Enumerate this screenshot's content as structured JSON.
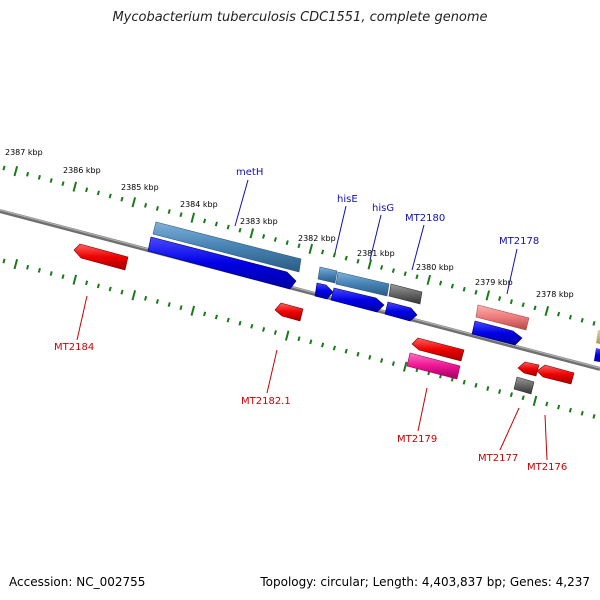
{
  "title": "Mycobacterium tuberculosis CDC1551, complete genome",
  "footer": {
    "accession": "Accession: NC_002755",
    "topology": "Topology: circular; Length: 4,403,837 bp; Genes: 4,237"
  },
  "kbp_labels": [
    "2387 kbp",
    "2386 kbp",
    "2385 kbp",
    "2384 kbp",
    "2383 kbp",
    "2382 kbp",
    "2381 kbp",
    "2380 kbp",
    "2379 kbp",
    "2378 kbp"
  ],
  "gene_labels": {
    "metH": "metH",
    "hisE": "hisE",
    "hisG": "hisG",
    "MT2180": "MT2180",
    "MT2178": "MT2178",
    "MT2184": "MT2184",
    "MT2182_1": "MT2182.1",
    "MT2179": "MT2179",
    "MT2177": "MT2177",
    "MT2176": "MT2176"
  },
  "colors": {
    "backbone": "#8a8a8a",
    "tick": "#1a7a1a",
    "blue": "#0000ee",
    "steelblue": "#4682b4",
    "red": "#ee0000",
    "gray": "#666666",
    "pink": "#ee7a7a",
    "magenta": "#ee1493",
    "label_top": "#1010b0",
    "label_bottom": "#cc0000"
  }
}
